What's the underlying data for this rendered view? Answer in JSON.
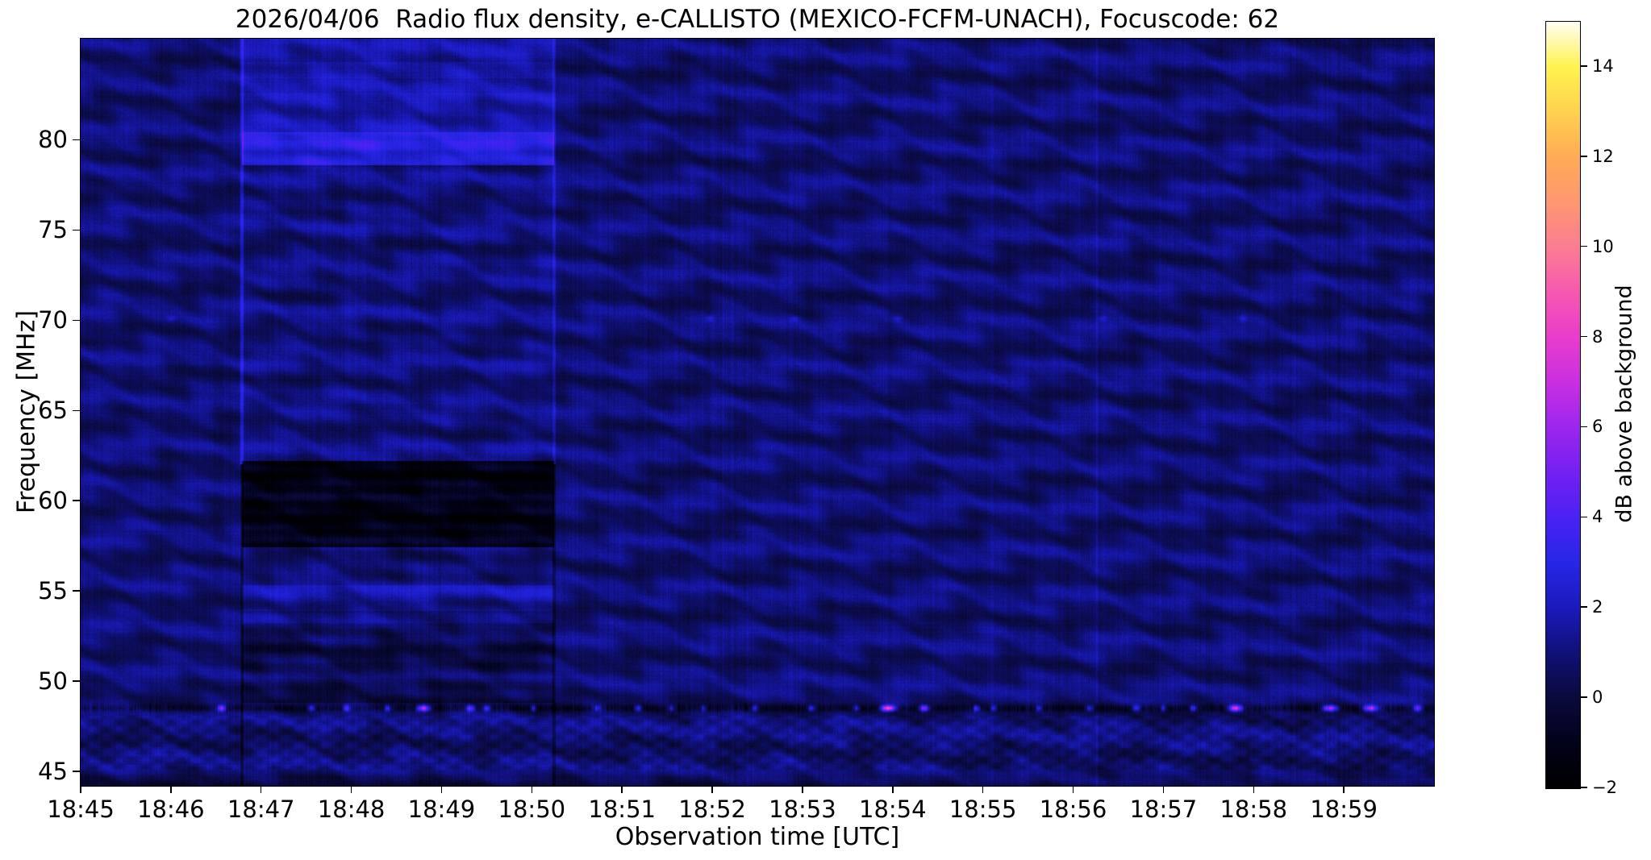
{
  "figure": {
    "background": "#ffffff"
  },
  "chart_data": {
    "type": "heatmap",
    "title": "2026/04/06  Radio flux density, e-CALLISTO (MEXICO-FCFM-UNACH), Focuscode: 62",
    "xlabel": "Observation time [UTC]",
    "ylabel": "Frequency [MHz]",
    "x_axis": {
      "start_utc": "18:45",
      "end_utc": "19:00",
      "minutes_span": 15,
      "ticks": [
        {
          "t": 0,
          "label": "18:45"
        },
        {
          "t": 1,
          "label": "18:46"
        },
        {
          "t": 2,
          "label": "18:47"
        },
        {
          "t": 3,
          "label": "18:48"
        },
        {
          "t": 4,
          "label": "18:49"
        },
        {
          "t": 5,
          "label": "18:50"
        },
        {
          "t": 6,
          "label": "18:51"
        },
        {
          "t": 7,
          "label": "18:52"
        },
        {
          "t": 8,
          "label": "18:53"
        },
        {
          "t": 9,
          "label": "18:54"
        },
        {
          "t": 10,
          "label": "18:55"
        },
        {
          "t": 11,
          "label": "18:56"
        },
        {
          "t": 12,
          "label": "18:57"
        },
        {
          "t": 13,
          "label": "18:58"
        },
        {
          "t": 14,
          "label": "18:59"
        }
      ]
    },
    "y_axis": {
      "min_mhz": 44.2,
      "max_mhz": 85.6,
      "ticks": [
        {
          "f": 80,
          "label": "80"
        },
        {
          "f": 75,
          "label": "75"
        },
        {
          "f": 70,
          "label": "70"
        },
        {
          "f": 65,
          "label": "65"
        },
        {
          "f": 60,
          "label": "60"
        },
        {
          "f": 55,
          "label": "55"
        },
        {
          "f": 50,
          "label": "50"
        },
        {
          "f": 45,
          "label": "45"
        }
      ]
    },
    "colorbar": {
      "label": "dB above background",
      "vmin": -2,
      "vmax": 15,
      "ticks": [
        {
          "v": 14,
          "label": "14"
        },
        {
          "v": 12,
          "label": "12"
        },
        {
          "v": 10,
          "label": "10"
        },
        {
          "v": 8,
          "label": "8"
        },
        {
          "v": 6,
          "label": "6"
        },
        {
          "v": 4,
          "label": "4"
        },
        {
          "v": 2,
          "label": "2"
        },
        {
          "v": 0,
          "label": "0"
        },
        {
          "v": -2,
          "label": "−2"
        }
      ],
      "stops": [
        {
          "v": -2,
          "color": "#000000"
        },
        {
          "v": -1,
          "color": "#02021a"
        },
        {
          "v": 0,
          "color": "#0a0a3c"
        },
        {
          "v": 1,
          "color": "#101078"
        },
        {
          "v": 2,
          "color": "#1a1abc"
        },
        {
          "v": 3,
          "color": "#2626e6"
        },
        {
          "v": 4,
          "color": "#4a22f2"
        },
        {
          "v": 5,
          "color": "#7420f2"
        },
        {
          "v": 6,
          "color": "#9c26ee"
        },
        {
          "v": 7,
          "color": "#c92fe0"
        },
        {
          "v": 8,
          "color": "#e93ccc"
        },
        {
          "v": 9,
          "color": "#f659b0"
        },
        {
          "v": 10,
          "color": "#fb7d92"
        },
        {
          "v": 11,
          "color": "#fe9770"
        },
        {
          "v": 12,
          "color": "#ffab55"
        },
        {
          "v": 13,
          "color": "#ffd14f"
        },
        {
          "v": 14,
          "color": "#fff34e"
        },
        {
          "v": 15,
          "color": "#fffdf4"
        }
      ]
    },
    "features": {
      "background_pattern": {
        "description": "dark-blue spectrogram with undulating horizontal interference ripples and fine vertical column noise",
        "base_db": 0.85,
        "ripple_period_mhz": 2.5,
        "ripple_undulation_period_min": 1.35
      },
      "calibration_band": {
        "description": "vertical instrument band with bright blue strip near 79-80 MHz and near-black band 57.5-62 MHz",
        "t_start_min": 1.79,
        "t_end_min": 5.25,
        "start_utc": "18:46:47",
        "end_utc": "18:50:15",
        "bright_band_mhz": [
          78.6,
          80.4
        ],
        "upper_bright_mhz": [
          80.4,
          85.6
        ],
        "dark_band_mhz": [
          57.4,
          62.2
        ],
        "stripe_band_mhz": [
          53.9,
          55.3
        ],
        "darkened_mhz": [
          48.8,
          53.2
        ]
      },
      "rfi_line": {
        "description": "dark dashed carrier at 48.5 MHz with intermittent bright blue and magenta bursts",
        "freq_mhz": 48.5,
        "bright_spots": [
          {
            "t": 1.56,
            "s": 0.95,
            "w": 0.045
          },
          {
            "t": 2.56,
            "s": 0.55,
            "w": 0.04
          },
          {
            "t": 2.95,
            "s": 0.6,
            "w": 0.04
          },
          {
            "t": 3.4,
            "s": 0.6,
            "w": 0.035
          },
          {
            "t": 3.8,
            "s": 1.15,
            "w": 0.07
          },
          {
            "t": 4.32,
            "s": 0.8,
            "w": 0.05
          },
          {
            "t": 4.5,
            "s": 0.6,
            "w": 0.04
          },
          {
            "t": 5.02,
            "s": 0.5,
            "w": 0.035
          },
          {
            "t": 5.73,
            "s": 0.45,
            "w": 0.04
          },
          {
            "t": 6.18,
            "s": 0.5,
            "w": 0.04
          },
          {
            "t": 6.55,
            "s": 0.45,
            "w": 0.035
          },
          {
            "t": 6.9,
            "s": 0.4,
            "w": 0.035
          },
          {
            "t": 7.47,
            "s": 0.55,
            "w": 0.045
          },
          {
            "t": 8.1,
            "s": 0.6,
            "w": 0.045
          },
          {
            "t": 8.6,
            "s": 0.5,
            "w": 0.04
          },
          {
            "t": 8.95,
            "s": 1.45,
            "w": 0.08
          },
          {
            "t": 9.35,
            "s": 1.0,
            "w": 0.05
          },
          {
            "t": 9.93,
            "s": 0.65,
            "w": 0.04
          },
          {
            "t": 10.12,
            "s": 0.5,
            "w": 0.035
          },
          {
            "t": 10.62,
            "s": 0.45,
            "w": 0.04
          },
          {
            "t": 11.18,
            "s": 0.55,
            "w": 0.045
          },
          {
            "t": 11.7,
            "s": 0.5,
            "w": 0.04
          },
          {
            "t": 12.0,
            "s": 0.45,
            "w": 0.035
          },
          {
            "t": 12.33,
            "s": 0.6,
            "w": 0.04
          },
          {
            "t": 12.8,
            "s": 1.2,
            "w": 0.075
          },
          {
            "t": 13.85,
            "s": 1.1,
            "w": 0.09
          },
          {
            "t": 14.3,
            "s": 1.05,
            "w": 0.08
          },
          {
            "t": 14.82,
            "s": 0.7,
            "w": 0.05
          }
        ]
      },
      "dots_70mhz": {
        "description": "sporadic faint bright dots on the 70 MHz channel",
        "freq_mhz": 70.1,
        "times_min": [
          1.0,
          6.97,
          7.92,
          9.06,
          11.33,
          12.88
        ]
      },
      "vertical_line": {
        "description": "faint thin vertical artifact line",
        "time_min": 11.26,
        "utc": "18:56:16"
      },
      "seed": 62
    }
  }
}
